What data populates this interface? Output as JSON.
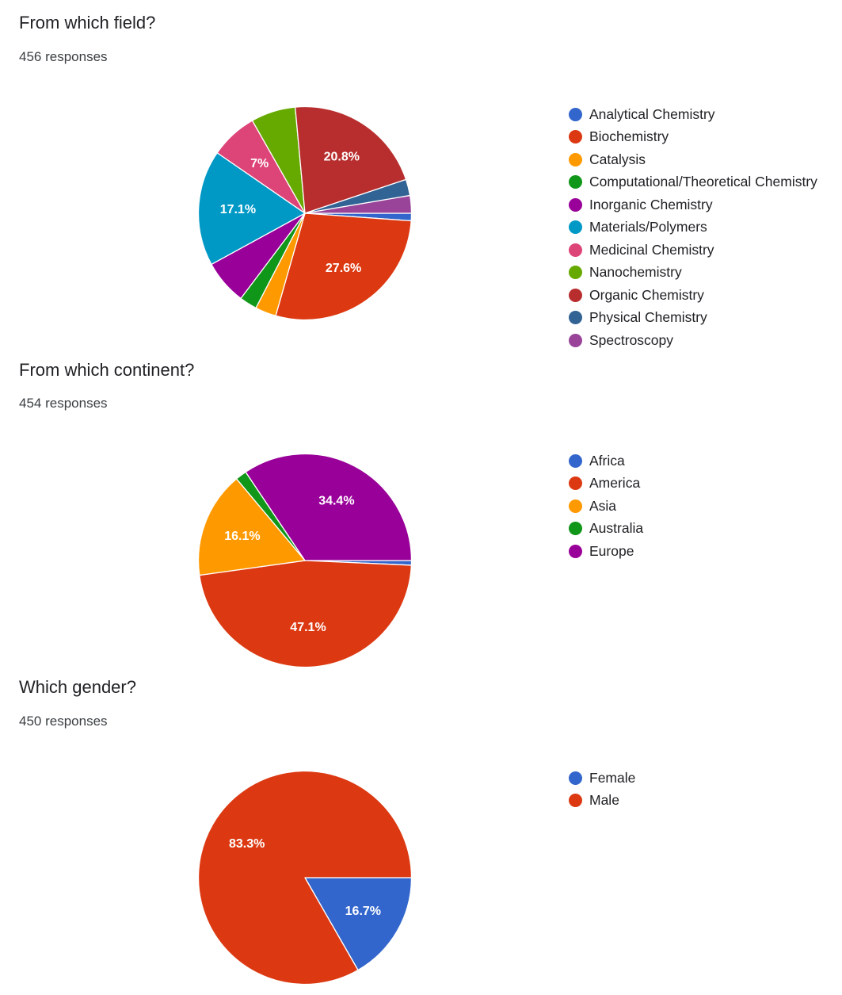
{
  "charts": [
    {
      "title": "From which field?",
      "responses": "456 responses"
    },
    {
      "title": "From which continent?",
      "responses": "454 responses"
    },
    {
      "title": "Which gender?",
      "responses": "450 responses"
    }
  ],
  "chart_data": [
    {
      "type": "pie",
      "title": "From which field?",
      "subtitle": "456 responses",
      "legend_position": "right",
      "slices": [
        {
          "label": "Analytical Chemistry",
          "value": 1.1,
          "color": "#3366cc",
          "display": ""
        },
        {
          "label": "Biochemistry",
          "value": 27.6,
          "color": "#dc3912",
          "display": "27.6%"
        },
        {
          "label": "Catalysis",
          "value": 3.1,
          "color": "#ff9900",
          "display": ""
        },
        {
          "label": "Computational/Theoretical Chemistry",
          "value": 2.6,
          "color": "#109618",
          "display": ""
        },
        {
          "label": "Inorganic Chemistry",
          "value": 6.6,
          "color": "#990099",
          "display": ""
        },
        {
          "label": "Materials/Polymers",
          "value": 17.1,
          "color": "#0099c6",
          "display": "17.1%"
        },
        {
          "label": "Medicinal Chemistry",
          "value": 7,
          "color": "#dd4477",
          "display": "7%"
        },
        {
          "label": "Nanochemistry",
          "value": 6.6,
          "color": "#66aa00",
          "display": ""
        },
        {
          "label": "Organic Chemistry",
          "value": 20.8,
          "color": "#b82e2e",
          "display": "20.8%"
        },
        {
          "label": "Physical Chemistry",
          "value": 2.4,
          "color": "#316395",
          "display": ""
        },
        {
          "label": "Spectroscopy",
          "value": 2.6,
          "color": "#994499",
          "display": ""
        }
      ]
    },
    {
      "type": "pie",
      "title": "From which continent?",
      "subtitle": "454 responses",
      "legend_position": "right",
      "slices": [
        {
          "label": "Africa",
          "value": 0.7,
          "color": "#3366cc",
          "display": ""
        },
        {
          "label": "America",
          "value": 47.1,
          "color": "#dc3912",
          "display": "47.1%"
        },
        {
          "label": "Asia",
          "value": 16.1,
          "color": "#ff9900",
          "display": "16.1%"
        },
        {
          "label": "Australia",
          "value": 1.7,
          "color": "#109618",
          "display": ""
        },
        {
          "label": "Europe",
          "value": 34.4,
          "color": "#990099",
          "display": "34.4%"
        }
      ]
    },
    {
      "type": "pie",
      "title": "Which gender?",
      "subtitle": "450 responses",
      "legend_position": "right",
      "slices": [
        {
          "label": "Female",
          "value": 16.7,
          "color": "#3366cc",
          "display": "16.7%"
        },
        {
          "label": "Male",
          "value": 83.3,
          "color": "#dc3912",
          "display": "83.3%"
        }
      ]
    }
  ]
}
